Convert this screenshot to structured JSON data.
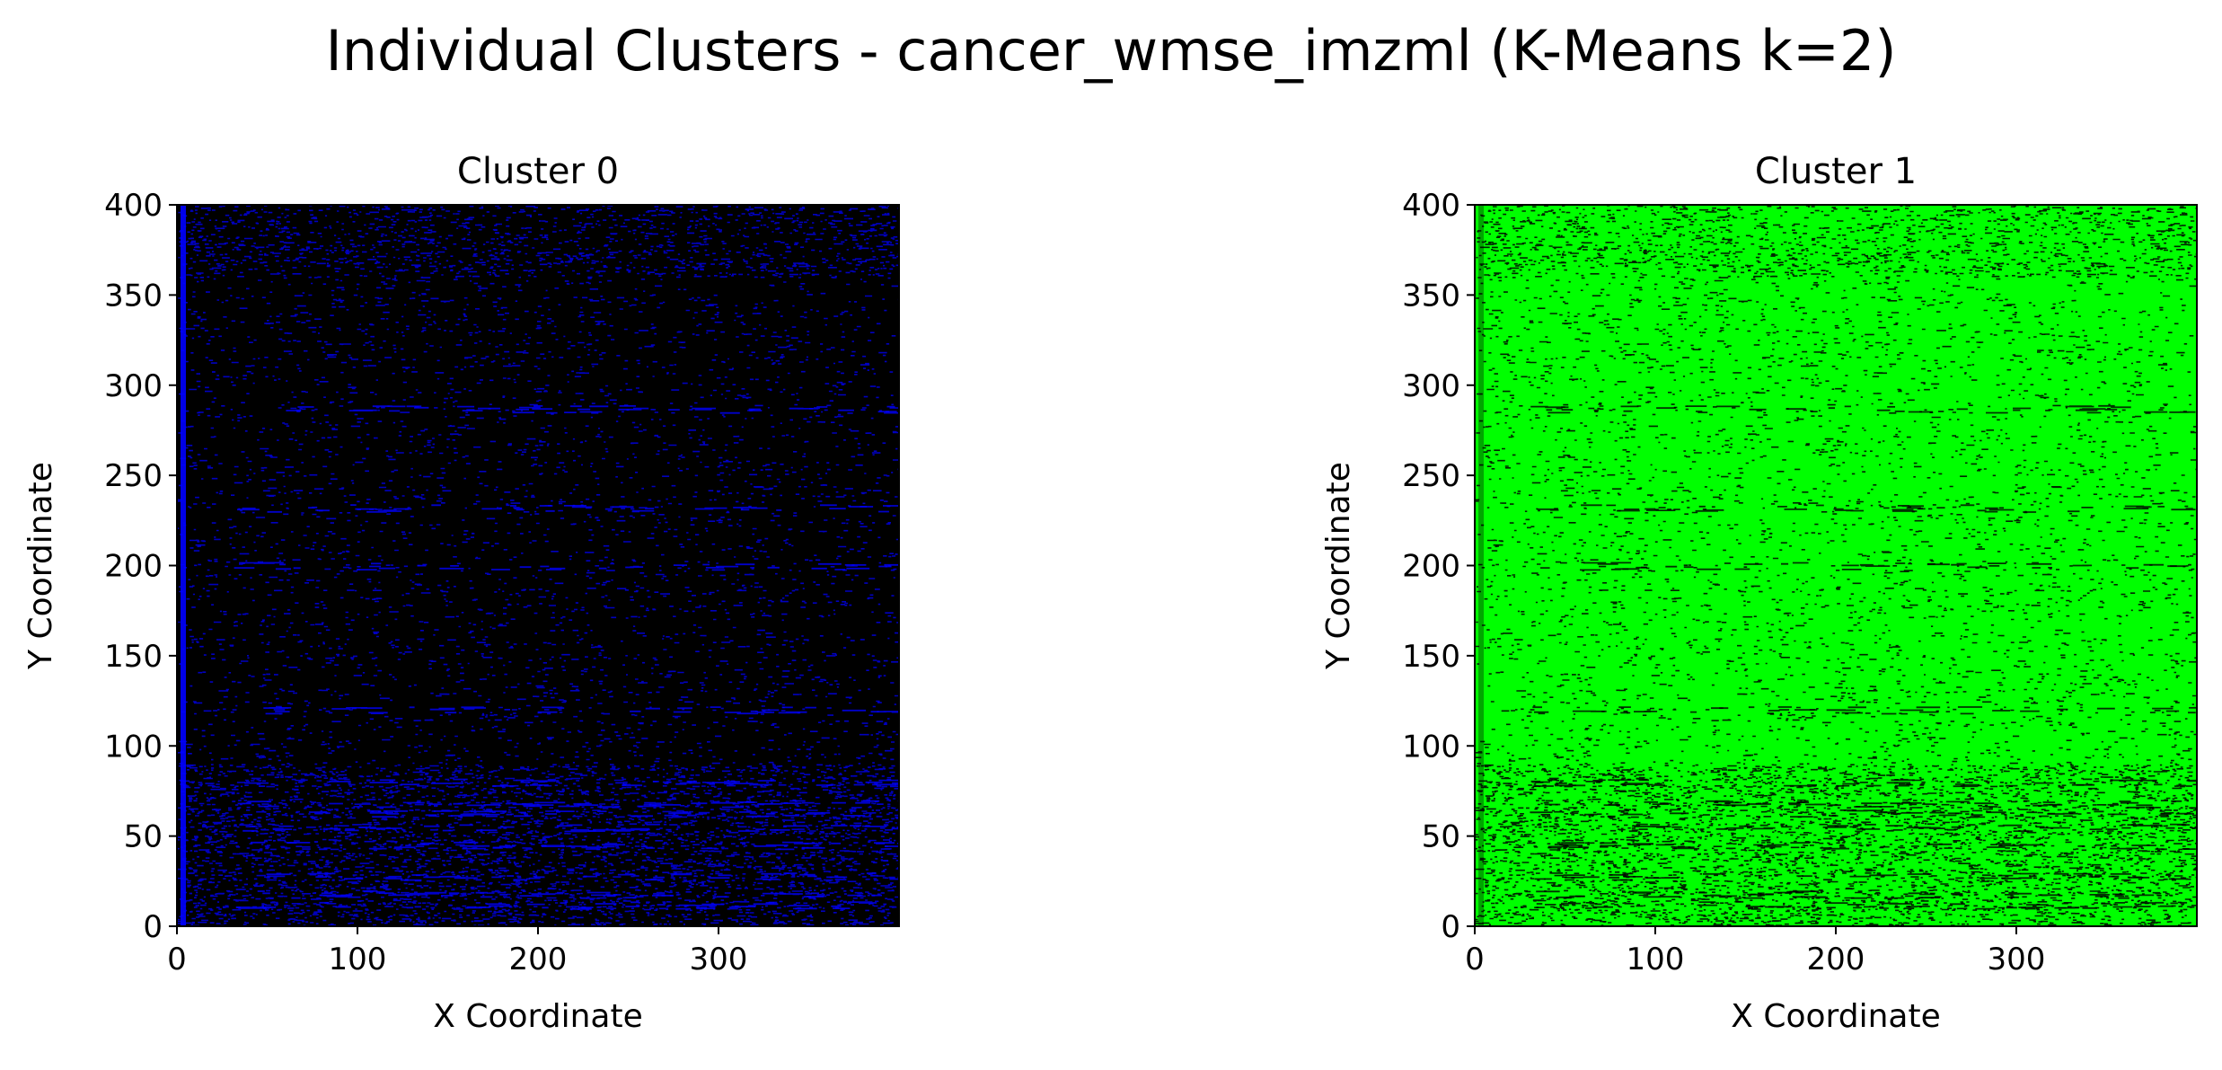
{
  "figure": {
    "suptitle": "Individual Clusters - cancer_wmse_imzml (K-Means k=2)"
  },
  "chart_data": [
    {
      "type": "heatmap",
      "title": "Cluster 0",
      "xlabel": "X Coordinate",
      "ylabel": "Y Coordinate",
      "xlim": [
        0,
        400
      ],
      "ylim": [
        0,
        400
      ],
      "xticks": [
        0,
        100,
        200,
        300
      ],
      "yticks": [
        0,
        50,
        100,
        150,
        200,
        250,
        300,
        350,
        400
      ],
      "xtick_labels": [
        "0",
        "100",
        "200",
        "300"
      ],
      "ytick_labels": [
        "0",
        "50",
        "100",
        "150",
        "200",
        "250",
        "300",
        "350",
        "400"
      ],
      "member_color": "#0000ff",
      "background_color": "#000000",
      "grid": false
    },
    {
      "type": "heatmap",
      "title": "Cluster 1",
      "xlabel": "X Coordinate",
      "ylabel": "Y Coordinate",
      "xlim": [
        0,
        400
      ],
      "ylim": [
        0,
        400
      ],
      "xticks": [
        0,
        100,
        200,
        300
      ],
      "yticks": [
        0,
        50,
        100,
        150,
        200,
        250,
        300,
        350,
        400
      ],
      "xtick_labels": [
        "0",
        "100",
        "200",
        "300"
      ],
      "ytick_labels": [
        "0",
        "50",
        "100",
        "150",
        "200",
        "250",
        "300",
        "350",
        "400"
      ],
      "member_color": "#00ff00",
      "background_color": "#000000",
      "grid": false
    }
  ]
}
